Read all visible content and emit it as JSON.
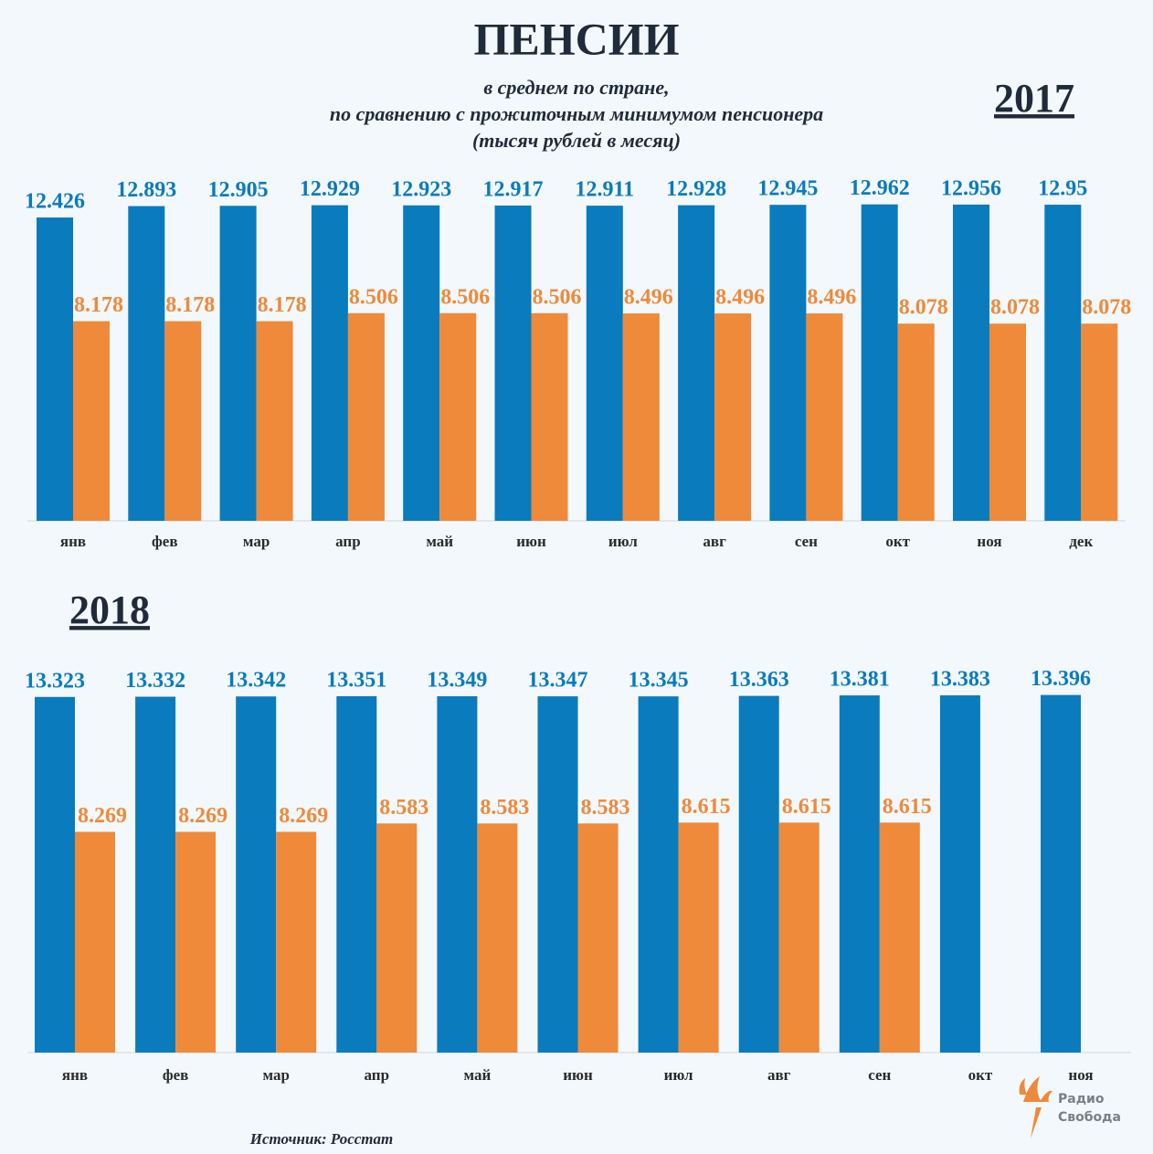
{
  "header": {
    "title": "ПЕНСИИ",
    "subtitle": [
      "в среднем по стране,",
      "по сравнению с прожиточным минимумом пенсионера",
      "(тысяч рублей в месяц)"
    ]
  },
  "chart_data": [
    {
      "type": "bar",
      "title": "2017",
      "categories": [
        "янв",
        "фев",
        "мар",
        "апр",
        "май",
        "июн",
        "июл",
        "авг",
        "сен",
        "окт",
        "ноя",
        "дек"
      ],
      "series": [
        {
          "color": "#0a7bbd",
          "values": [
            12.426,
            12.893,
            12.905,
            12.929,
            12.923,
            12.917,
            12.911,
            12.928,
            12.945,
            12.962,
            12.956,
            12.95
          ]
        },
        {
          "color": "#ee8a3a",
          "values": [
            8.178,
            8.178,
            8.178,
            8.506,
            8.506,
            8.506,
            8.496,
            8.496,
            8.496,
            8.078,
            8.078,
            8.078
          ]
        }
      ],
      "ylim": [
        0,
        14
      ],
      "grid": false
    },
    {
      "type": "bar",
      "title": "2018",
      "categories": [
        "янв",
        "фев",
        "мар",
        "апр",
        "май",
        "июн",
        "июл",
        "авг",
        "сен",
        "окт",
        "ноя"
      ],
      "series": [
        {
          "color": "#0a7bbd",
          "values": [
            13.323,
            13.332,
            13.342,
            13.351,
            13.349,
            13.347,
            13.345,
            13.363,
            13.381,
            13.383,
            13.396
          ]
        },
        {
          "color": "#ee8a3a",
          "values": [
            8.269,
            8.269,
            8.269,
            8.583,
            8.583,
            8.583,
            8.615,
            8.615,
            8.615,
            null,
            null
          ]
        }
      ],
      "ylim": [
        0,
        14
      ],
      "grid": false
    }
  ],
  "footer": {
    "source": "Источник: Росстат",
    "logo": [
      "Радио",
      "Свобода"
    ]
  }
}
